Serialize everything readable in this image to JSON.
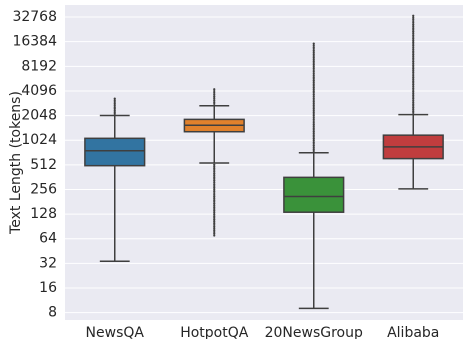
{
  "chart_data": {
    "type": "box",
    "title": "",
    "xlabel": "",
    "ylabel": "Text Length (tokens)",
    "y_scale": "log2",
    "ylim": [
      6.5,
      46000
    ],
    "yticks": [
      8,
      16,
      32,
      64,
      128,
      256,
      512,
      1024,
      2048,
      4096,
      8192,
      16384,
      32768
    ],
    "ytick_labels": [
      "8",
      "16",
      "32",
      "64",
      "128",
      "256",
      "512",
      "1024",
      "2048",
      "4096",
      "8192",
      "16384",
      "32768"
    ],
    "grid": true,
    "background": "#eaeaf2",
    "categories": [
      "NewsQA",
      "HotpotQA",
      "20NewsGroup",
      "Alibaba"
    ],
    "boxes": [
      {
        "name": "NewsQA",
        "color": "#3274a1",
        "whisker_low": 34,
        "q1": 500,
        "median": 760,
        "q3": 1080,
        "whisker_high": 2050,
        "fliers_low": 0,
        "fliers_high": 3300
      },
      {
        "name": "HotpotQA",
        "color": "#e1812c",
        "whisker_low": 540,
        "q1": 1300,
        "median": 1560,
        "q3": 1840,
        "whisker_high": 2700,
        "fliers_low": 70,
        "fliers_high": 4300
      },
      {
        "name": "20NewsGroup",
        "color": "#3a923a",
        "whisker_low": 9,
        "q1": 135,
        "median": 210,
        "q3": 360,
        "whisker_high": 720,
        "fliers_low": 0,
        "fliers_high": 15500
      },
      {
        "name": "Alibaba",
        "color": "#c03d3e",
        "whisker_low": 260,
        "q1": 610,
        "median": 850,
        "q3": 1180,
        "whisker_high": 2100,
        "fliers_low": 0,
        "fliers_high": 34000
      }
    ]
  }
}
